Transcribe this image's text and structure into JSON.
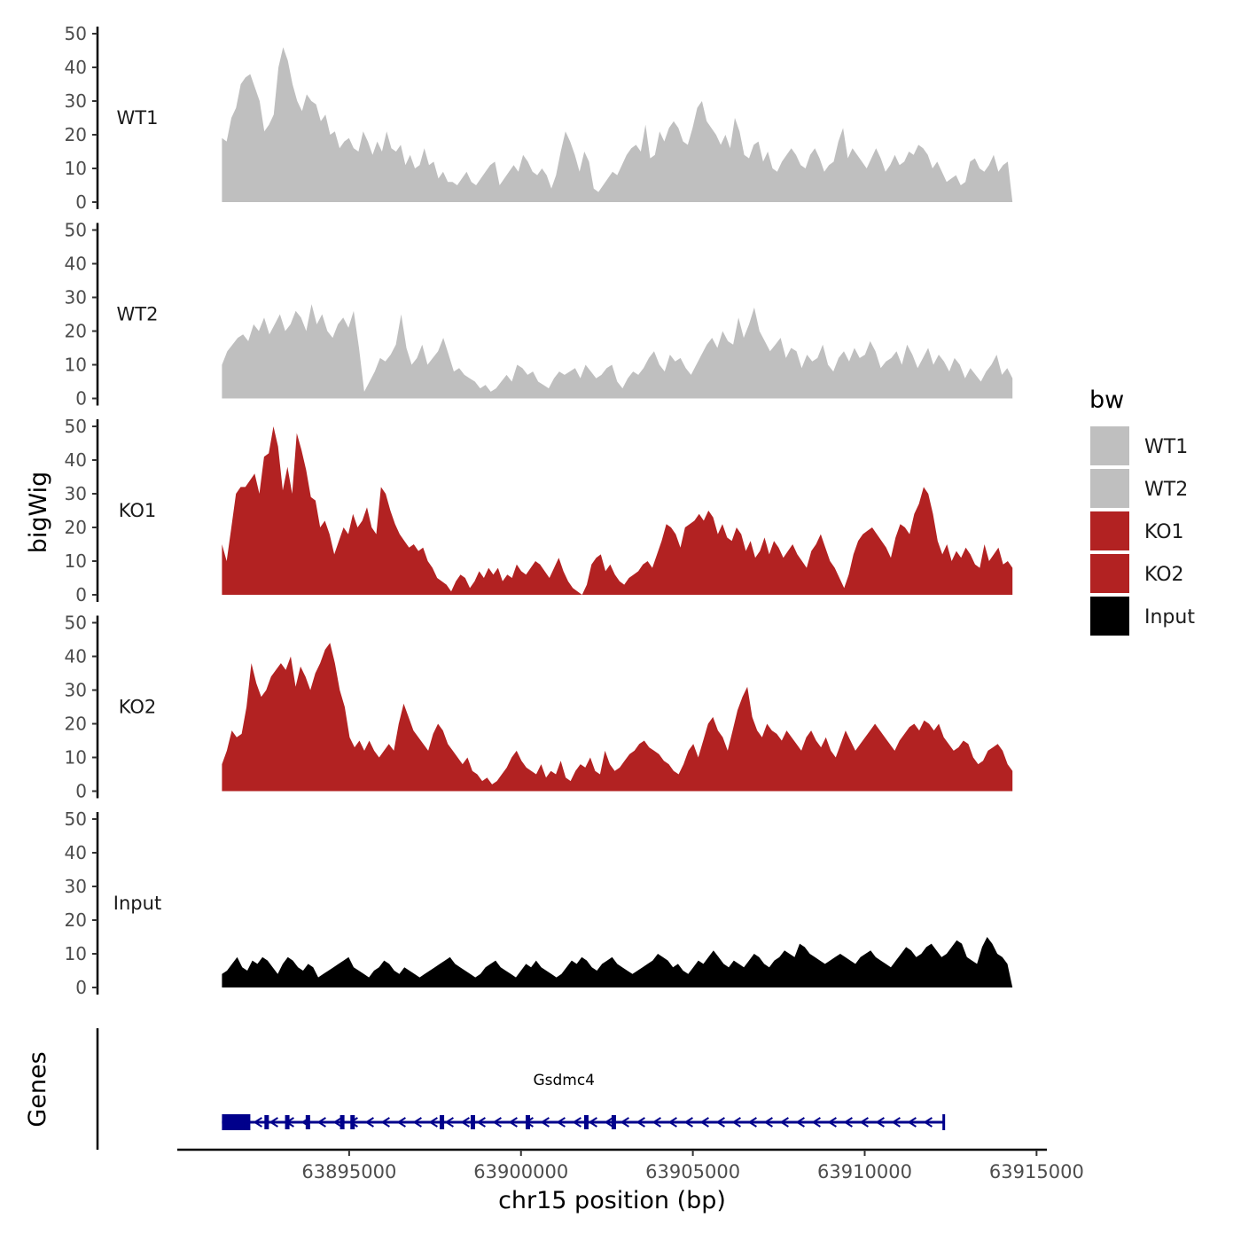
{
  "chart_data": {
    "type": "area",
    "title": "",
    "ylabel": "bigWig",
    "xlabel": "chr15 position (bp)",
    "xlim": [
      63890000,
      63915300
    ],
    "ylim": [
      0,
      50
    ],
    "y_ticks": [
      0,
      10,
      20,
      30,
      40,
      50
    ],
    "x_ticks": [
      63895000,
      63900000,
      63905000,
      63910000,
      63915000
    ],
    "x_tick_labels": [
      "63895000",
      "63900000",
      "63905000",
      "63910000",
      "63915000"
    ],
    "x_start": 63891300,
    "x_end": 63914300,
    "legend": {
      "title": "bw",
      "position": "right",
      "entries": [
        {
          "label": "WT1",
          "color": "#bfbfbf"
        },
        {
          "label": "WT2",
          "color": "#bfbfbf"
        },
        {
          "label": "KO1",
          "color": "#b22222"
        },
        {
          "label": "KO2",
          "color": "#b22222"
        },
        {
          "label": "Input",
          "color": "#000000"
        }
      ]
    },
    "series": [
      {
        "name": "WT1",
        "color": "#bfbfbf",
        "values": [
          19,
          18,
          25,
          28,
          35,
          37,
          38,
          34,
          30,
          21,
          23,
          26,
          40,
          46,
          42,
          35,
          30,
          27,
          32,
          30,
          29,
          24,
          26,
          20,
          21,
          16,
          18,
          19,
          16,
          15,
          21,
          18,
          14,
          18,
          15,
          21,
          16,
          15,
          17,
          11,
          14,
          10,
          11,
          16,
          11,
          12,
          7,
          9,
          6,
          6,
          5,
          7,
          9,
          6,
          5,
          7,
          9,
          11,
          12,
          5,
          7,
          9,
          11,
          9,
          14,
          12,
          9,
          8,
          10,
          8,
          4,
          8,
          15,
          21,
          18,
          14,
          9,
          15,
          12,
          4,
          3,
          5,
          7,
          9,
          8,
          11,
          14,
          16,
          17,
          15,
          23,
          13,
          14,
          21,
          18,
          22,
          24,
          22,
          18,
          17,
          22,
          28,
          30,
          24,
          22,
          20,
          17,
          20,
          16,
          25,
          21,
          14,
          13,
          17,
          18,
          12,
          15,
          10,
          9,
          12,
          14,
          16,
          14,
          11,
          10,
          14,
          16,
          13,
          9,
          11,
          12,
          18,
          22,
          13,
          16,
          14,
          12,
          10,
          13,
          16,
          13,
          9,
          11,
          14,
          11,
          12,
          15,
          14,
          17,
          16,
          14,
          10,
          12,
          9,
          6,
          7,
          8,
          5,
          6,
          12,
          13,
          10,
          9,
          11,
          14,
          9,
          11,
          12,
          0
        ]
      },
      {
        "name": "WT2",
        "color": "#bfbfbf",
        "values": [
          10,
          14,
          16,
          18,
          19,
          17,
          22,
          20,
          24,
          19,
          22,
          25,
          20,
          22,
          26,
          24,
          20,
          28,
          22,
          25,
          20,
          18,
          22,
          24,
          21,
          26,
          15,
          2,
          5,
          8,
          12,
          11,
          13,
          16,
          25,
          15,
          10,
          12,
          16,
          10,
          12,
          14,
          18,
          13,
          8,
          9,
          7,
          6,
          5,
          3,
          4,
          2,
          3,
          5,
          7,
          5,
          10,
          9,
          7,
          8,
          5,
          4,
          3,
          6,
          8,
          7,
          8,
          9,
          6,
          10,
          8,
          6,
          7,
          9,
          10,
          5,
          3,
          6,
          8,
          7,
          9,
          12,
          14,
          10,
          8,
          13,
          11,
          12,
          9,
          7,
          10,
          13,
          16,
          18,
          15,
          20,
          17,
          16,
          24,
          18,
          22,
          27,
          20,
          17,
          14,
          16,
          18,
          12,
          15,
          14,
          9,
          13,
          11,
          12,
          16,
          10,
          8,
          12,
          14,
          11,
          15,
          12,
          13,
          17,
          14,
          9,
          11,
          12,
          14,
          10,
          16,
          13,
          9,
          12,
          15,
          10,
          13,
          11,
          8,
          12,
          10,
          6,
          9,
          7,
          5,
          8,
          10,
          13,
          7,
          9,
          6
        ]
      },
      {
        "name": "KO1",
        "color": "#b22222",
        "values": [
          15,
          10,
          20,
          30,
          32,
          32,
          34,
          36,
          30,
          41,
          42,
          50,
          44,
          31,
          38,
          30,
          48,
          43,
          37,
          29,
          28,
          20,
          22,
          18,
          12,
          16,
          20,
          18,
          24,
          20,
          22,
          26,
          20,
          18,
          32,
          30,
          25,
          21,
          18,
          16,
          14,
          15,
          13,
          14,
          10,
          8,
          5,
          4,
          3,
          1,
          4,
          6,
          5,
          2,
          4,
          7,
          5,
          8,
          6,
          8,
          4,
          6,
          5,
          9,
          7,
          6,
          8,
          10,
          9,
          7,
          5,
          8,
          11,
          7,
          4,
          2,
          1,
          0,
          3,
          9,
          11,
          12,
          7,
          9,
          6,
          4,
          3,
          5,
          6,
          7,
          9,
          10,
          8,
          12,
          16,
          21,
          20,
          18,
          14,
          20,
          21,
          22,
          24,
          22,
          25,
          23,
          18,
          21,
          17,
          16,
          20,
          18,
          13,
          16,
          11,
          13,
          17,
          12,
          16,
          14,
          11,
          13,
          15,
          12,
          10,
          8,
          13,
          15,
          18,
          14,
          10,
          8,
          5,
          2,
          6,
          12,
          16,
          18,
          19,
          20,
          18,
          16,
          14,
          11,
          17,
          21,
          20,
          18,
          24,
          27,
          32,
          30,
          24,
          16,
          12,
          15,
          10,
          13,
          11,
          14,
          12,
          9,
          8,
          15,
          10,
          12,
          14,
          9,
          10,
          8
        ]
      },
      {
        "name": "KO2",
        "color": "#b22222",
        "values": [
          8,
          12,
          18,
          16,
          17,
          25,
          38,
          32,
          28,
          30,
          34,
          36,
          38,
          36,
          40,
          31,
          37,
          34,
          30,
          35,
          38,
          42,
          44,
          38,
          30,
          25,
          16,
          13,
          15,
          12,
          15,
          12,
          10,
          12,
          14,
          12,
          20,
          26,
          22,
          18,
          16,
          14,
          12,
          17,
          20,
          18,
          14,
          12,
          10,
          8,
          10,
          6,
          5,
          3,
          4,
          2,
          3,
          5,
          7,
          10,
          12,
          9,
          7,
          6,
          5,
          8,
          4,
          6,
          5,
          9,
          4,
          3,
          6,
          8,
          7,
          10,
          6,
          5,
          12,
          8,
          6,
          7,
          9,
          11,
          12,
          14,
          15,
          13,
          12,
          11,
          9,
          8,
          6,
          5,
          8,
          12,
          14,
          10,
          15,
          20,
          22,
          18,
          16,
          12,
          18,
          24,
          28,
          31,
          22,
          18,
          16,
          20,
          18,
          17,
          15,
          18,
          16,
          14,
          12,
          16,
          18,
          15,
          13,
          16,
          12,
          10,
          14,
          18,
          15,
          12,
          14,
          16,
          18,
          20,
          18,
          16,
          14,
          12,
          15,
          17,
          19,
          20,
          18,
          21,
          20,
          18,
          20,
          16,
          14,
          12,
          13,
          15,
          14,
          10,
          8,
          9,
          12,
          13,
          14,
          12,
          8,
          6
        ]
      },
      {
        "name": "Input",
        "color": "#000000",
        "values": [
          4,
          5,
          7,
          9,
          6,
          5,
          8,
          7,
          9,
          8,
          6,
          4,
          7,
          9,
          8,
          6,
          5,
          7,
          6,
          3,
          4,
          5,
          6,
          7,
          8,
          9,
          6,
          5,
          4,
          3,
          5,
          6,
          8,
          7,
          5,
          4,
          6,
          5,
          4,
          3,
          4,
          5,
          6,
          7,
          8,
          9,
          7,
          6,
          5,
          4,
          3,
          4,
          6,
          7,
          8,
          6,
          5,
          4,
          3,
          5,
          7,
          6,
          8,
          6,
          5,
          4,
          3,
          4,
          6,
          8,
          7,
          9,
          8,
          6,
          5,
          7,
          8,
          9,
          7,
          6,
          5,
          4,
          5,
          6,
          7,
          8,
          10,
          9,
          8,
          6,
          7,
          5,
          4,
          6,
          8,
          7,
          9,
          11,
          9,
          7,
          6,
          8,
          7,
          6,
          8,
          10,
          9,
          7,
          6,
          8,
          9,
          11,
          10,
          9,
          13,
          12,
          10,
          9,
          8,
          7,
          8,
          9,
          10,
          9,
          8,
          7,
          9,
          10,
          11,
          9,
          8,
          7,
          6,
          8,
          10,
          12,
          11,
          9,
          10,
          12,
          13,
          11,
          9,
          10,
          12,
          14,
          13,
          9,
          8,
          7,
          12,
          15,
          13,
          10,
          9,
          7,
          0
        ]
      }
    ],
    "genes_track": {
      "ylabel": "Genes",
      "gene_name": "Gsdmc4",
      "start": 63891300,
      "end": 63912300,
      "strand": "-",
      "color": "#00008b",
      "exons": [
        63891300,
        63892000,
        63892600,
        63893200,
        63893800,
        63894800,
        63895100,
        63897700,
        63898600,
        63900200,
        63901900,
        63902700
      ]
    }
  }
}
